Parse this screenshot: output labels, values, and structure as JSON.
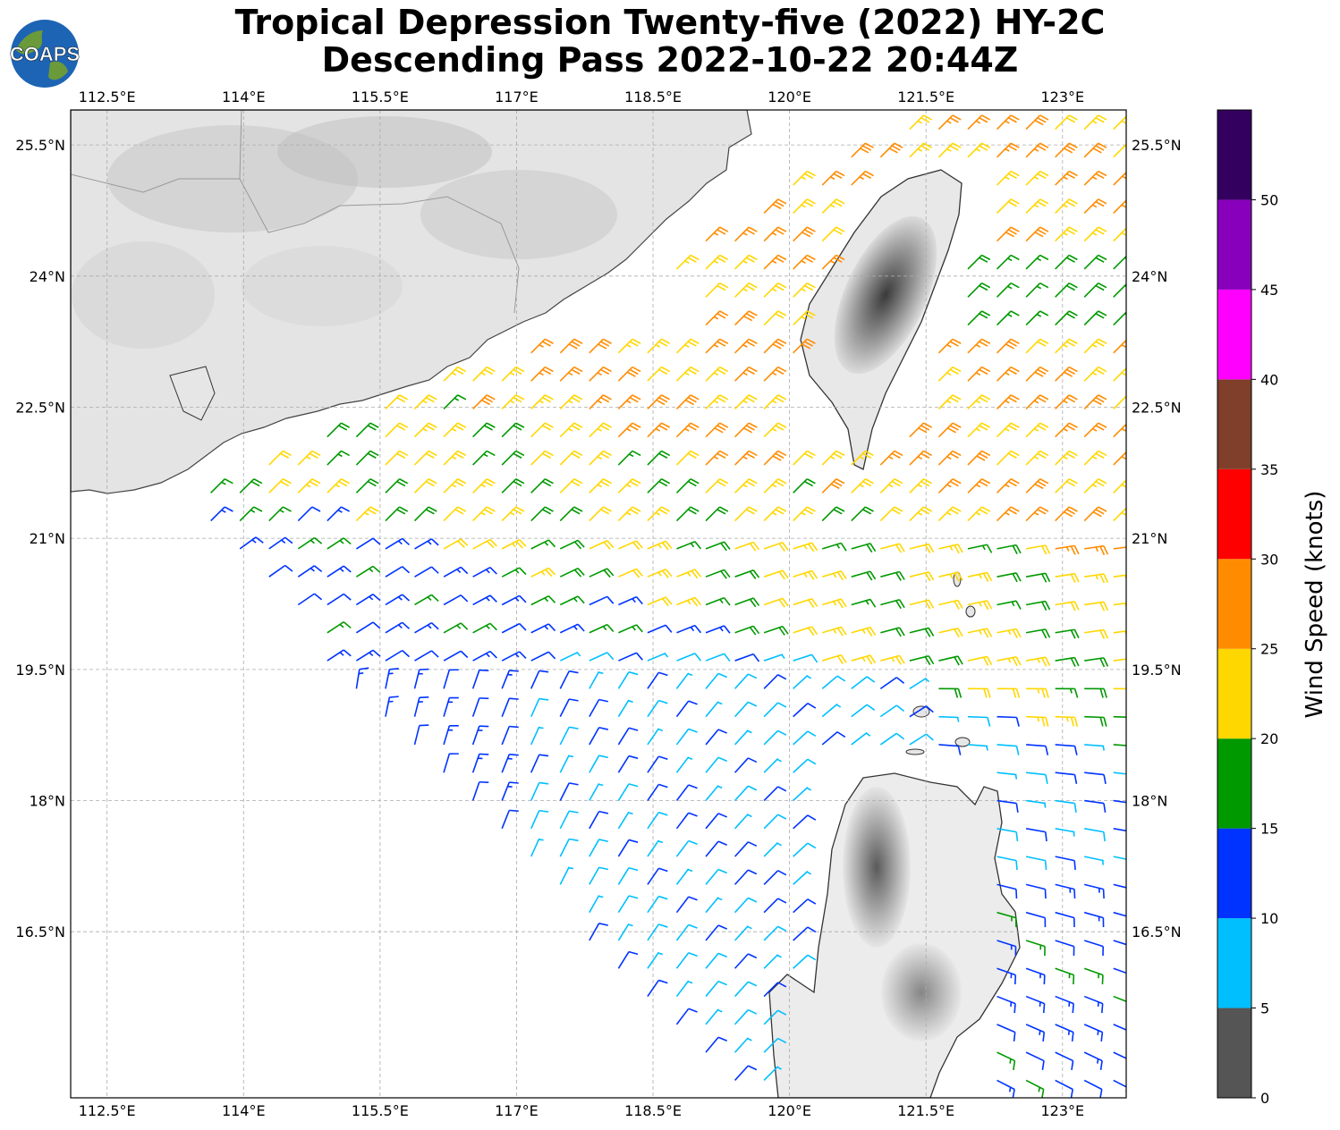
{
  "title_line1": "Tropical Depression Twenty-five (2022) HY-2C",
  "title_line2": "Descending Pass 2022-10-22 20:44Z",
  "logo_text": "COAPS",
  "chart_data": {
    "type": "wind-barb map",
    "title": "Tropical Depression Twenty-five (2022) HY-2C Descending Pass 2022-10-22 20:44Z",
    "lon_range": [
      112.1,
      123.7
    ],
    "lat_range": [
      14.6,
      25.9
    ],
    "x_ticks": [
      "112.5°E",
      "114°E",
      "115.5°E",
      "117°E",
      "118.5°E",
      "120°E",
      "121.5°E",
      "123°E"
    ],
    "x_tick_values": [
      112.5,
      114,
      115.5,
      117,
      118.5,
      120,
      121.5,
      123
    ],
    "y_ticks": [
      "25.5°N",
      "24°N",
      "22.5°N",
      "21°N",
      "19.5°N",
      "18°N",
      "16.5°N"
    ],
    "y_tick_values": [
      25.5,
      24,
      22.5,
      21,
      19.5,
      18,
      16.5
    ],
    "grid": true,
    "colorbar": {
      "label": "Wind Speed (knots)",
      "bounds": [
        0,
        5,
        10,
        15,
        20,
        25,
        30,
        35,
        40,
        45,
        50,
        55
      ],
      "tick_labels": [
        "0",
        "5",
        "10",
        "15",
        "20",
        "25",
        "30",
        "35",
        "40",
        "45",
        "50"
      ],
      "colors": [
        "#555555",
        "#00bfff",
        "#0033ff",
        "#009900",
        "#ffd700",
        "#ff8c00",
        "#ff0000",
        "#7f3f2a",
        "#ff00ff",
        "#8800bb",
        "#33005f"
      ]
    },
    "swath": {
      "north_west": [
        113.2,
        21.5
      ],
      "south_edge_lon": [
        116.4,
        119.7
      ]
    },
    "wind_regions": [
      {
        "area": "Taiwan Strait / northern swath",
        "speed_kt": [
          20,
          30
        ],
        "direction_from": "NE"
      },
      {
        "area": "north of Luzon, 19.5-21N",
        "speed_kt": [
          10,
          20
        ],
        "direction_from": "NE/E"
      },
      {
        "area": "southern swath",
        "speed_kt": [
          5,
          15
        ],
        "direction_from": "N"
      },
      {
        "area": "east of Luzon",
        "speed_kt": [
          5,
          15
        ],
        "direction_from": "E/SE"
      }
    ]
  }
}
